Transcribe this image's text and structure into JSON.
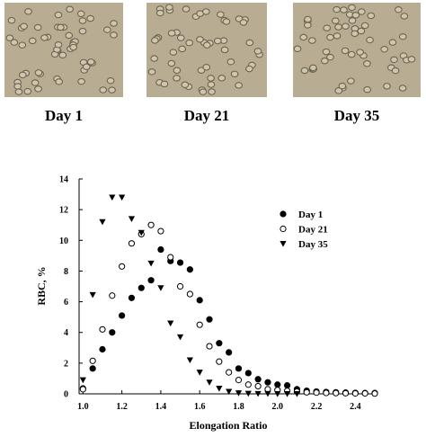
{
  "panels": [
    {
      "label": "Day 1"
    },
    {
      "label": "Day 21"
    },
    {
      "label": "Day 35"
    }
  ],
  "chart_data": {
    "type": "scatter",
    "xlabel": "Elongation Ratio",
    "ylabel": "RBC, %",
    "x": [
      1.0,
      1.05,
      1.1,
      1.15,
      1.2,
      1.25,
      1.3,
      1.35,
      1.4,
      1.45,
      1.5,
      1.55,
      1.6,
      1.65,
      1.7,
      1.75,
      1.8,
      1.85,
      1.9,
      1.95,
      2.0,
      2.05,
      2.1,
      2.15,
      2.2,
      2.25,
      2.3,
      2.35,
      2.4,
      2.45,
      2.5
    ],
    "series": [
      {
        "name": "Day 1",
        "color": "#000000",
        "marker": "circle-filled",
        "values": [
          0.35,
          1.65,
          2.9,
          4.0,
          5.1,
          6.25,
          6.9,
          7.4,
          9.4,
          8.65,
          8.55,
          8.1,
          6.1,
          4.85,
          3.3,
          2.7,
          1.65,
          1.35,
          0.95,
          0.75,
          0.6,
          0.55,
          0.3,
          0.2,
          0.15,
          0.12,
          0.1,
          0.08,
          0.06,
          0.05,
          0.05
        ]
      },
      {
        "name": "Day 21",
        "color": "#000000",
        "marker": "circle-open",
        "values": [
          0.3,
          2.15,
          4.2,
          6.4,
          8.3,
          9.8,
          10.4,
          11.0,
          10.6,
          8.9,
          7.0,
          6.5,
          4.5,
          3.1,
          2.1,
          1.4,
          0.9,
          0.6,
          0.5,
          0.3,
          0.25,
          0.2,
          0.15,
          0.1,
          0.08,
          0.06,
          0.05,
          0.04,
          0.03,
          0.03,
          0.02
        ]
      },
      {
        "name": "Day 35",
        "color": "#000000",
        "marker": "triangle-down",
        "values": [
          0.9,
          6.45,
          11.2,
          12.8,
          12.8,
          11.4,
          10.5,
          8.5,
          6.9,
          4.6,
          3.7,
          2.2,
          1.4,
          0.75,
          0.35,
          0.15,
          0.05,
          0.02,
          0.01,
          0.01,
          0.0,
          0.0,
          0.0,
          null,
          null,
          null,
          null,
          null,
          null,
          null,
          null
        ]
      }
    ],
    "xlim": [
      0.98,
      2.5
    ],
    "xticks": [
      {
        "value": 1.0,
        "label": "1.0"
      },
      1.2,
      1.4,
      1.6,
      1.8,
      {
        "value": 2.0,
        "label": "2.0"
      },
      2.2,
      2.4
    ],
    "ylim": [
      0,
      14
    ],
    "yticks": [
      0,
      2,
      4,
      6,
      8,
      10,
      12,
      14
    ],
    "legend": "upper right"
  }
}
